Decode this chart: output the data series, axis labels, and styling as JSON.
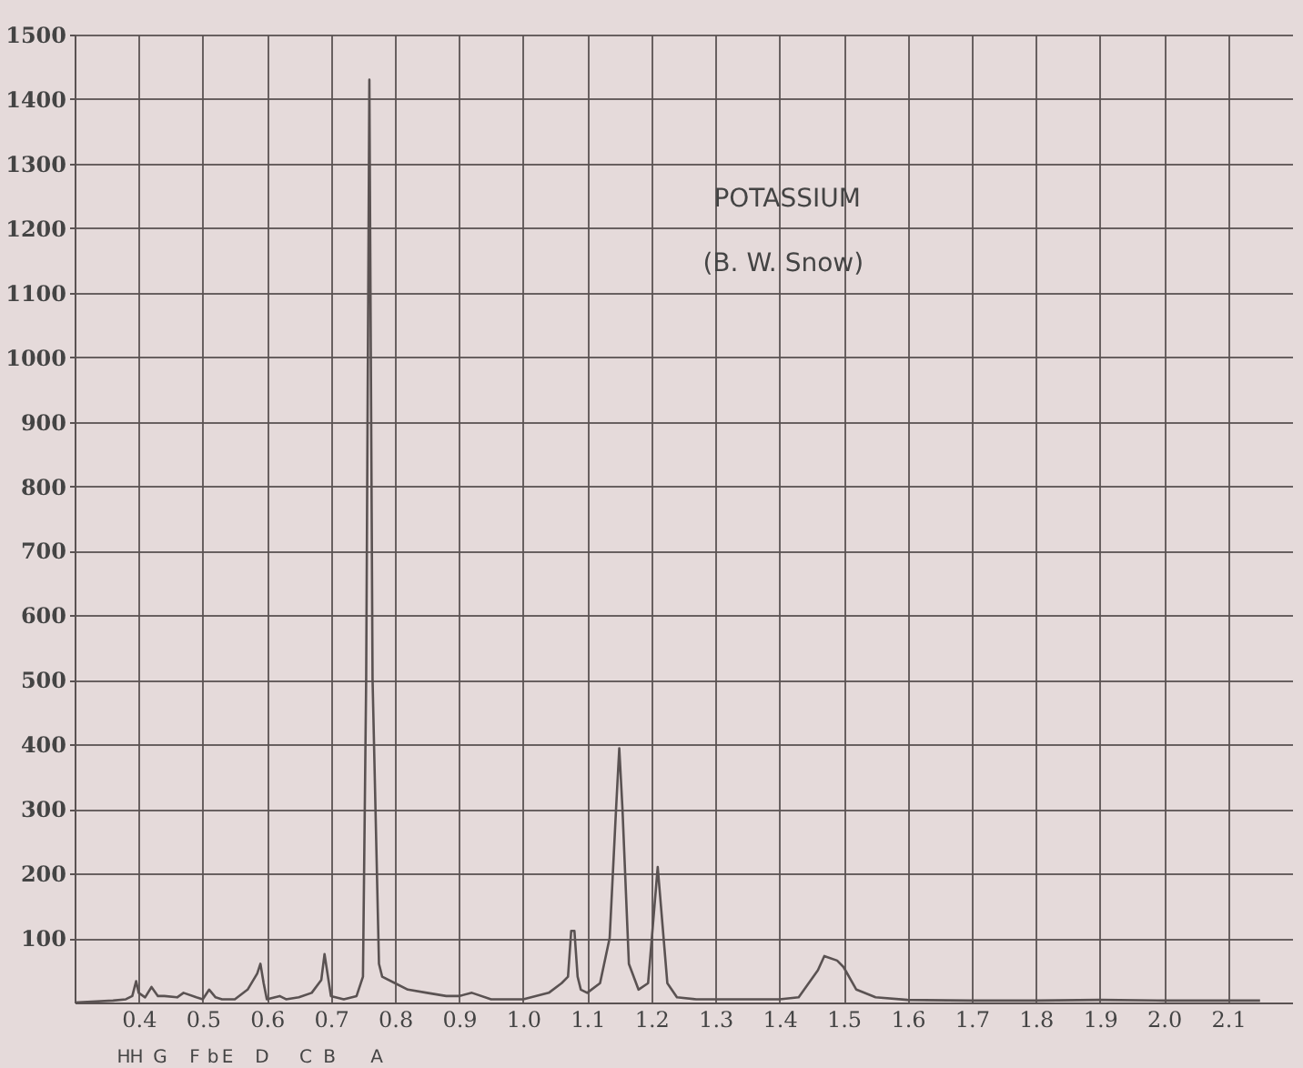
{
  "chart_data": {
    "type": "line",
    "annotations": [
      "POTASSIUM",
      "(B. W. Snow)",
      "H",
      "H",
      "G",
      "F",
      "b",
      "E",
      "D",
      "C",
      "B",
      "A"
    ],
    "x": [
      0.3,
      0.36,
      0.38,
      0.39,
      0.396,
      0.4,
      0.41,
      0.42,
      0.43,
      0.44,
      0.46,
      0.47,
      0.49,
      0.5,
      0.51,
      0.52,
      0.53,
      0.55,
      0.57,
      0.585,
      0.59,
      0.595,
      0.6,
      0.62,
      0.63,
      0.65,
      0.67,
      0.685,
      0.69,
      0.7,
      0.72,
      0.74,
      0.75,
      0.755,
      0.76,
      0.765,
      0.775,
      0.78,
      0.8,
      0.82,
      0.85,
      0.88,
      0.9,
      0.92,
      0.95,
      1.0,
      1.04,
      1.06,
      1.07,
      1.075,
      1.08,
      1.085,
      1.09,
      1.1,
      1.12,
      1.135,
      1.145,
      1.15,
      1.155,
      1.165,
      1.18,
      1.195,
      1.205,
      1.21,
      1.215,
      1.225,
      1.24,
      1.27,
      1.3,
      1.35,
      1.4,
      1.43,
      1.46,
      1.47,
      1.49,
      1.5,
      1.52,
      1.55,
      1.6,
      1.7,
      1.8,
      1.9,
      2.0,
      2.1,
      2.15
    ],
    "series": [
      {
        "color": "#5a5252",
        "values": [
          0,
          3,
          5,
          10,
          33,
          15,
          8,
          24,
          10,
          10,
          8,
          15,
          8,
          5,
          20,
          8,
          5,
          5,
          20,
          45,
          60,
          30,
          5,
          10,
          5,
          8,
          15,
          35,
          75,
          10,
          5,
          10,
          40,
          500,
          1430,
          500,
          60,
          40,
          30,
          20,
          15,
          10,
          10,
          15,
          5,
          5,
          15,
          30,
          40,
          111,
          111,
          40,
          20,
          15,
          30,
          100,
          300,
          394,
          300,
          60,
          20,
          30,
          150,
          210,
          150,
          30,
          8,
          5,
          5,
          5,
          5,
          8,
          50,
          72,
          65,
          55,
          20,
          8,
          4,
          3,
          3,
          4,
          3,
          3,
          3
        ]
      }
    ],
    "xlim": [
      0.3,
      2.2
    ],
    "ylim": [
      0,
      1500
    ],
    "xticks": [
      0.4,
      0.5,
      0.6,
      0.7,
      0.8,
      0.9,
      {
        "value": 1,
        "label": "1.0"
      },
      1.1,
      1.2,
      1.3,
      1.4,
      1.5,
      1.6,
      1.7,
      1.8,
      1.9,
      {
        "value": 2,
        "label": "2.0"
      },
      2.1
    ],
    "yticks": [
      100,
      200,
      300,
      400,
      500,
      600,
      700,
      800,
      900,
      1000,
      1100,
      1200,
      1300,
      1400,
      1500
    ],
    "grid": true,
    "marker": "none",
    "line_style": "solid"
  }
}
